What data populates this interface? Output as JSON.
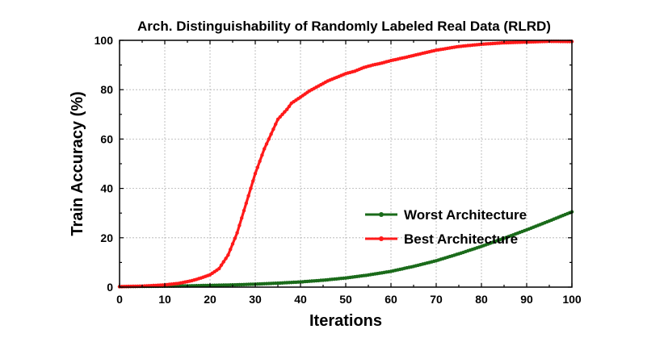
{
  "chart_data": {
    "type": "line",
    "title": "Arch. Distinguishability of Randomly Labeled Real Data (RLRD)",
    "xlabel": "Iterations",
    "ylabel": "Train Accuracy (%)",
    "xlim": [
      0,
      100
    ],
    "ylim": [
      0,
      100
    ],
    "xticks": [
      "0",
      "10",
      "20",
      "30",
      "40",
      "50",
      "60",
      "70",
      "80",
      "90",
      "100"
    ],
    "yticks": [
      "0",
      "20",
      "40",
      "60",
      "80",
      "100"
    ],
    "grid": true,
    "legend_position": "center-right",
    "series": [
      {
        "name": "Worst Architecture",
        "color": "#1a6b1a",
        "x": [
          0,
          5,
          10,
          15,
          20,
          25,
          30,
          35,
          40,
          45,
          50,
          55,
          60,
          65,
          70,
          75,
          80,
          85,
          90,
          95,
          100
        ],
        "y": [
          0.2,
          0.3,
          0.4,
          0.5,
          0.7,
          0.9,
          1.2,
          1.6,
          2.1,
          2.8,
          3.7,
          4.9,
          6.4,
          8.4,
          10.7,
          13.5,
          16.5,
          19.8,
          23.2,
          26.8,
          30.5
        ]
      },
      {
        "name": "Best Architecture",
        "color": "#ff1a1a",
        "x": [
          0,
          5,
          10,
          13,
          16,
          18,
          20,
          22,
          24,
          26,
          28,
          30,
          32,
          34,
          35,
          36,
          37,
          38,
          40,
          42,
          44,
          46,
          48,
          50,
          52,
          54,
          56,
          58,
          60,
          63,
          66,
          70,
          75,
          80,
          85,
          90,
          95,
          100
        ],
        "y": [
          0.2,
          0.4,
          0.9,
          1.5,
          2.6,
          3.7,
          5.0,
          7.5,
          13.0,
          22.0,
          34.0,
          46.0,
          56.0,
          64.0,
          68.0,
          70.0,
          72.0,
          74.5,
          77.0,
          79.5,
          81.5,
          83.5,
          85.0,
          86.5,
          87.5,
          89.0,
          90.0,
          90.8,
          91.8,
          93.0,
          94.3,
          96.0,
          97.5,
          98.4,
          99.0,
          99.3,
          99.6,
          99.5
        ]
      }
    ]
  }
}
